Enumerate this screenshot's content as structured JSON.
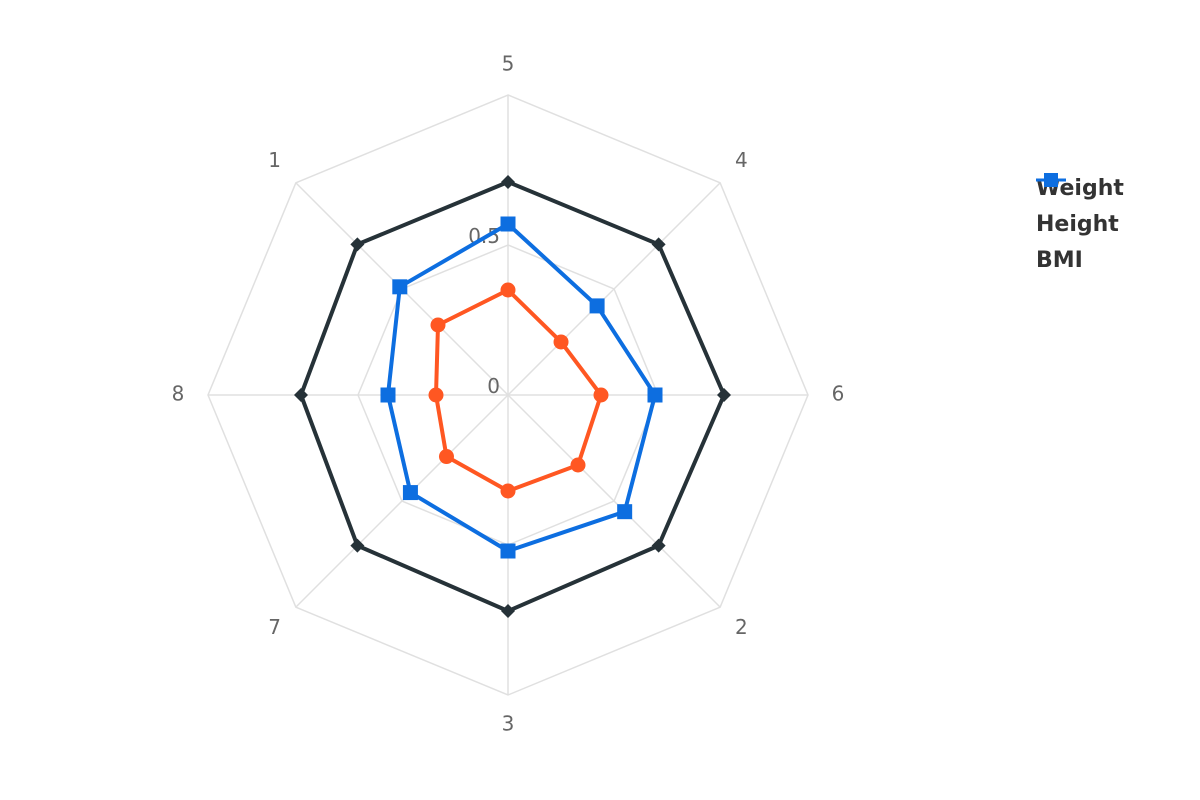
{
  "chart_data": {
    "type": "radar",
    "categories": [
      "5",
      "4",
      "6",
      "2",
      "3",
      "7",
      "8",
      "1"
    ],
    "radial_axis": {
      "range": [
        0,
        1
      ],
      "tick_labels": [
        "0",
        "0.5"
      ]
    },
    "grid": true,
    "legend_position": "right",
    "series": [
      {
        "name": "Weight",
        "color": "#FF5722",
        "marker": "circle",
        "values": [
          0.35,
          0.25,
          0.31,
          0.33,
          0.32,
          0.29,
          0.24,
          0.33
        ]
      },
      {
        "name": "Height",
        "color": "#263238",
        "marker": "diamond",
        "values": [
          0.71,
          0.71,
          0.72,
          0.71,
          0.72,
          0.71,
          0.69,
          0.71
        ]
      },
      {
        "name": "BMI",
        "color": "#0D6EE0",
        "marker": "square",
        "values": [
          0.57,
          0.42,
          0.49,
          0.55,
          0.52,
          0.46,
          0.4,
          0.51
        ]
      }
    ]
  }
}
